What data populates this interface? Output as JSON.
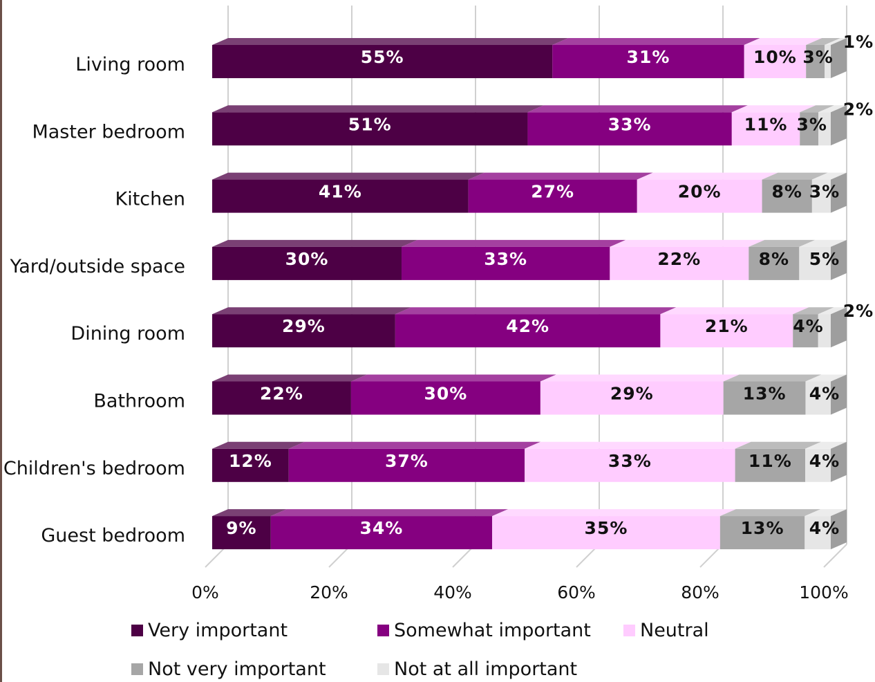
{
  "chart_data": {
    "type": "bar",
    "orientation": "horizontal",
    "stacked": true,
    "categories": [
      "Living room",
      "Master bedroom",
      "Kitchen",
      "Yard/outside space",
      "Dining room",
      "Bathroom",
      "Children's bedroom",
      "Guest bedroom"
    ],
    "series": [
      {
        "name": "Very important",
        "color": "#4d0045",
        "values": [
          55,
          51,
          41,
          30,
          29,
          22,
          12,
          9
        ]
      },
      {
        "name": "Somewhat important",
        "color": "#850080",
        "values": [
          31,
          33,
          27,
          33,
          42,
          30,
          37,
          34
        ]
      },
      {
        "name": "Neutral",
        "color": "#ffccff",
        "values": [
          10,
          11,
          20,
          22,
          21,
          29,
          33,
          35
        ]
      },
      {
        "name": "Not very important",
        "color": "#a6a6a6",
        "values": [
          3,
          3,
          8,
          8,
          4,
          13,
          11,
          13
        ]
      },
      {
        "name": "Not at all important",
        "color": "#e6e6e6",
        "values": [
          1,
          2,
          3,
          5,
          2,
          4,
          4,
          4
        ]
      }
    ],
    "data_labels": [
      [
        "55%",
        "31%",
        "10%",
        "3%",
        "1%"
      ],
      [
        "51%",
        "33%",
        "11%",
        "3%",
        "2%"
      ],
      [
        "41%",
        "27%",
        "20%",
        "8%",
        "3%"
      ],
      [
        "30%",
        "33%",
        "22%",
        "8%",
        "5%"
      ],
      [
        "29%",
        "42%",
        "21%",
        "4%",
        "2%"
      ],
      [
        "22%",
        "30%",
        "29%",
        "13%",
        "4%"
      ],
      [
        "12%",
        "37%",
        "33%",
        "11%",
        "4%"
      ],
      [
        "9%",
        "34%",
        "35%",
        "13%",
        "4%"
      ]
    ],
    "xlim": [
      0,
      100
    ],
    "x_ticks": [
      "0%",
      "20%",
      "40%",
      "60%",
      "80%",
      "100%"
    ],
    "grid": "vertical",
    "legend_position": "bottom",
    "title": "",
    "xlabel": "",
    "ylabel": ""
  }
}
